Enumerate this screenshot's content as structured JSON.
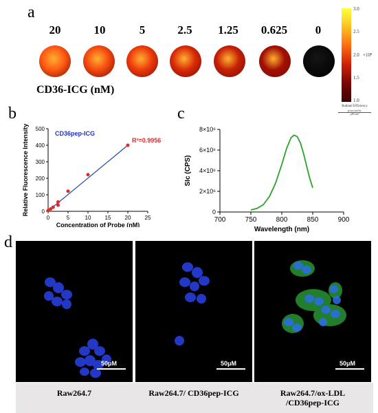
{
  "panel_a": {
    "letter": "a",
    "concentrations": [
      "20",
      "10",
      "5",
      "2.5",
      "1.25",
      "0.625",
      "0"
    ],
    "well_colors": [
      "#ff5a14",
      "#f54a10",
      "#ee3a0c",
      "#d92a08",
      "#c52006",
      "#a31004",
      "#050505"
    ],
    "well_levels": [
      2.55,
      2.35,
      2.2,
      1.95,
      1.75,
      1.5,
      0.0
    ],
    "ylabel": "CD36-ICG (nM)",
    "colorbar": {
      "ticks": [
        "3.0",
        "2.5",
        "2.0",
        "1.5",
        "1.0"
      ],
      "exponent": "×10⁸",
      "title": "Radiant Efficiency",
      "units_num": "p/sec/cm²/sr",
      "units_den": "μW/cm²",
      "range": [
        1.0,
        3.0
      ],
      "colors": [
        "#ffff40",
        "#ffc020",
        "#ff6a10",
        "#d02008",
        "#7a0404",
        "#3a0000"
      ]
    }
  },
  "panel_b": {
    "letter": "b",
    "chart_data": {
      "type": "scatter",
      "title": "",
      "legend": "CD36pep-ICG",
      "annotation": "R²=0.9956",
      "xlabel": "Concentration of Probe (nM)",
      "ylabel": "Relative Fluorescence Intensity",
      "xlim": [
        0,
        25
      ],
      "ylim": [
        0,
        500
      ],
      "xticks": [
        "0",
        "5",
        "10",
        "15",
        "20",
        "25"
      ],
      "yticks": [
        "0",
        "100",
        "200",
        "300",
        "400",
        "500"
      ],
      "points": [
        [
          0,
          5
        ],
        [
          0.625,
          14
        ],
        [
          1.25,
          25
        ],
        [
          2.5,
          37
        ],
        [
          2.5,
          57
        ],
        [
          5,
          122
        ],
        [
          10,
          222
        ],
        [
          20,
          400
        ]
      ],
      "fit_line": [
        [
          0,
          2
        ],
        [
          20,
          400
        ]
      ],
      "colors": {
        "points": "#e8262a",
        "line": "#1f47b0",
        "legend": "#1f2fd0",
        "annotation": "#e8262a"
      }
    }
  },
  "panel_c": {
    "letter": "c",
    "chart_data": {
      "type": "line",
      "title": "",
      "xlabel": "Wavelength  (nm)",
      "ylabel": "SIc  (CPS)",
      "xlim": [
        700,
        900
      ],
      "ylim": [
        0,
        8000000
      ],
      "xticks": [
        "700",
        "750",
        "800",
        "850",
        "900"
      ],
      "yticks": [
        "0",
        "2×10⁶",
        "4×10⁶",
        "6×10⁶",
        "8×10⁶"
      ],
      "series": [
        {
          "color": "#2aa12a",
          "points": [
            [
              750,
              200000
            ],
            [
              760,
              350000
            ],
            [
              770,
              700000
            ],
            [
              780,
              1500000
            ],
            [
              790,
              2800000
            ],
            [
              800,
              4600000
            ],
            [
              808,
              6200000
            ],
            [
              815,
              7200000
            ],
            [
              820,
              7450000
            ],
            [
              825,
              7300000
            ],
            [
              830,
              6700000
            ],
            [
              835,
              5700000
            ],
            [
              840,
              4500000
            ],
            [
              845,
              3300000
            ],
            [
              850,
              2350000
            ]
          ]
        }
      ]
    }
  },
  "panel_d": {
    "letter": "d",
    "scale_bar": "50μM",
    "captions": [
      {
        "line1": "Raw264.7",
        "line2": ""
      },
      {
        "line1": "Raw264.7/ CD36pep-ICG",
        "line2": ""
      },
      {
        "line1": "Raw264.7/ox-LDL",
        "line2": "/CD36pep-ICG"
      }
    ]
  }
}
